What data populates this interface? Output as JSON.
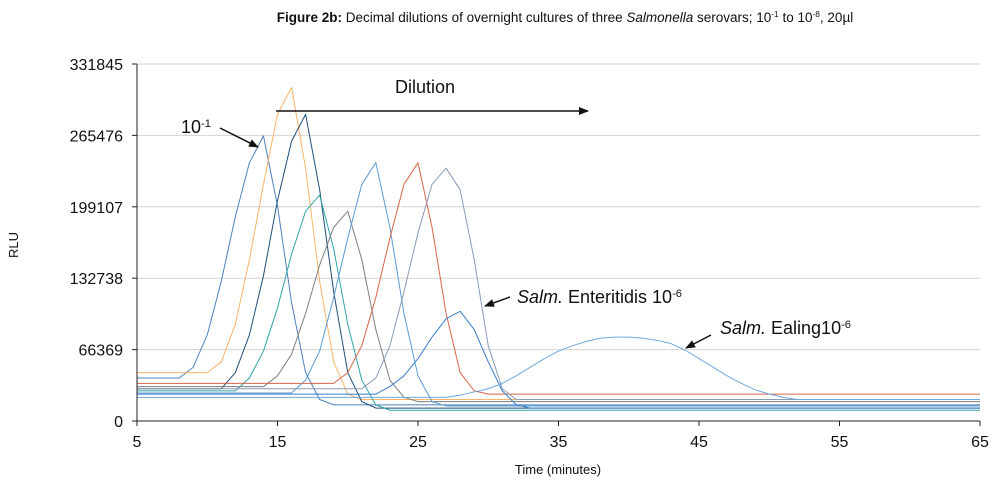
{
  "chart_data": {
    "type": "line",
    "title": [
      {
        "text": "Figure 2b:",
        "style": "bold"
      },
      {
        "text": " Decimal dilutions of overnight cultures of three "
      },
      {
        "text": "Salmonella",
        "style": "italic"
      },
      {
        "text": " serovars; 10"
      },
      {
        "text": "-1",
        "style": "sup"
      },
      {
        "text": " to 10"
      },
      {
        "text": "-8",
        "style": "sup"
      },
      {
        "text": ", 20µl"
      }
    ],
    "xlabel": "Time (minutes)",
    "ylabel": "RLU",
    "xlim": [
      5,
      65
    ],
    "xticks": [
      5,
      15,
      25,
      35,
      45,
      55,
      65
    ],
    "ylim": [
      0,
      331845
    ],
    "yticks": [
      0,
      66369,
      132738,
      199107,
      265476,
      331845
    ],
    "grid": true,
    "annotations": [
      [
        {
          "text": "Dilution"
        }
      ],
      [
        {
          "text": "10"
        },
        {
          "text": "-1",
          "style": "sup"
        }
      ],
      [
        {
          "text": "Salm.",
          "style": "italic"
        },
        {
          "text": " Enteritidis 10"
        },
        {
          "text": "-6",
          "style": "sup"
        }
      ],
      [
        {
          "text": "Salm.",
          "style": "italic"
        },
        {
          "text": " Ealing10"
        },
        {
          "text": "-6",
          "style": "sup"
        }
      ]
    ],
    "x": [
      5,
      6,
      7,
      8,
      9,
      10,
      11,
      12,
      13,
      14,
      15,
      16,
      17,
      18,
      19,
      20,
      21,
      22,
      23,
      24,
      25,
      26,
      27,
      28,
      29,
      30,
      31,
      32,
      33,
      34,
      35,
      36,
      37,
      38,
      39,
      40,
      41,
      42,
      43,
      44,
      45,
      46,
      47,
      48,
      49,
      50,
      51,
      52,
      53,
      54,
      55,
      56,
      57,
      58,
      59,
      60,
      61,
      62,
      63,
      64,
      65
    ],
    "series": [
      {
        "color": "#4f81bd",
        "values": [
          40000,
          40000,
          40000,
          40000,
          50000,
          80000,
          130000,
          190000,
          240000,
          265000,
          200000,
          110000,
          45000,
          20000,
          15000,
          15000,
          15000,
          15000,
          15000,
          15000,
          15000,
          15000,
          15000,
          15000,
          15000,
          15000,
          15000,
          15000,
          15000,
          15000,
          15000,
          15000,
          15000,
          15000,
          15000,
          15000,
          15000,
          15000,
          15000,
          15000,
          15000,
          15000,
          15000,
          15000,
          15000,
          15000,
          15000,
          15000,
          15000,
          15000,
          15000,
          15000,
          15000,
          15000,
          15000,
          15000,
          15000,
          15000,
          15000,
          15000,
          15000
        ]
      },
      {
        "color": "#f9b36b",
        "values": [
          45000,
          45000,
          45000,
          45000,
          45000,
          45000,
          55000,
          90000,
          150000,
          220000,
          285000,
          310000,
          235000,
          130000,
          55000,
          25000,
          20000,
          20000,
          20000,
          20000,
          20000,
          20000,
          20000,
          20000,
          20000,
          20000,
          20000,
          20000,
          20000,
          20000,
          20000,
          20000,
          20000,
          20000,
          20000,
          20000,
          20000,
          20000,
          20000,
          20000,
          20000,
          20000,
          20000,
          20000,
          20000,
          20000,
          20000,
          20000,
          20000,
          20000,
          20000,
          20000,
          20000,
          20000,
          20000,
          20000,
          20000,
          20000,
          20000,
          20000,
          20000
        ]
      },
      {
        "color": "#1f4e79",
        "values": [
          30000,
          30000,
          30000,
          30000,
          30000,
          30000,
          30000,
          45000,
          80000,
          135000,
          205000,
          260000,
          285000,
          215000,
          120000,
          45000,
          18000,
          12000,
          12000,
          12000,
          12000,
          12000,
          12000,
          12000,
          12000,
          12000,
          12000,
          12000,
          12000,
          12000,
          12000,
          12000,
          12000,
          12000,
          12000,
          12000,
          12000,
          12000,
          12000,
          12000,
          12000,
          12000,
          12000,
          12000,
          12000,
          12000,
          12000,
          12000,
          12000,
          12000,
          12000,
          12000,
          12000,
          12000,
          12000,
          12000,
          12000,
          12000,
          12000,
          12000,
          12000
        ]
      },
      {
        "color": "#2ca5a5",
        "values": [
          28000,
          28000,
          28000,
          28000,
          28000,
          28000,
          28000,
          28000,
          40000,
          65000,
          105000,
          155000,
          195000,
          210000,
          160000,
          90000,
          38000,
          15000,
          10000,
          10000,
          10000,
          10000,
          10000,
          10000,
          10000,
          10000,
          10000,
          10000,
          10000,
          10000,
          10000,
          10000,
          10000,
          10000,
          10000,
          10000,
          10000,
          10000,
          10000,
          10000,
          10000,
          10000,
          10000,
          10000,
          10000,
          10000,
          10000,
          10000,
          10000,
          10000,
          10000,
          10000,
          10000,
          10000,
          10000,
          10000,
          10000,
          10000,
          10000,
          10000,
          10000
        ]
      },
      {
        "color": "#7f7f7f",
        "values": [
          32000,
          32000,
          32000,
          32000,
          32000,
          32000,
          32000,
          32000,
          32000,
          32000,
          42000,
          62000,
          100000,
          145000,
          180000,
          195000,
          150000,
          85000,
          38000,
          22000,
          18000,
          18000,
          18000,
          18000,
          18000,
          18000,
          18000,
          18000,
          18000,
          18000,
          18000,
          18000,
          18000,
          18000,
          18000,
          18000,
          18000,
          18000,
          18000,
          18000,
          18000,
          18000,
          18000,
          18000,
          18000,
          18000,
          18000,
          18000,
          18000,
          18000,
          18000,
          18000,
          18000,
          18000,
          18000,
          18000,
          18000,
          18000,
          18000,
          18000,
          18000
        ]
      },
      {
        "color": "#5b9bd5",
        "values": [
          26000,
          26000,
          26000,
          26000,
          26000,
          26000,
          26000,
          26000,
          26000,
          26000,
          26000,
          26000,
          38000,
          65000,
          115000,
          170000,
          220000,
          240000,
          180000,
          100000,
          42000,
          18000,
          14000,
          14000,
          14000,
          14000,
          14000,
          14000,
          14000,
          14000,
          14000,
          14000,
          14000,
          14000,
          14000,
          14000,
          14000,
          14000,
          14000,
          14000,
          14000,
          14000,
          14000,
          14000,
          14000,
          14000,
          14000,
          14000,
          14000,
          14000,
          14000,
          14000,
          14000,
          14000,
          14000,
          14000,
          14000,
          14000,
          14000,
          14000,
          14000
        ]
      },
      {
        "color": "#d9644a",
        "values": [
          35000,
          35000,
          35000,
          35000,
          35000,
          35000,
          35000,
          35000,
          35000,
          35000,
          35000,
          35000,
          35000,
          35000,
          35000,
          45000,
          70000,
          115000,
          170000,
          220000,
          240000,
          180000,
          100000,
          45000,
          28000,
          25000,
          25000,
          25000,
          25000,
          25000,
          25000,
          25000,
          25000,
          25000,
          25000,
          25000,
          25000,
          25000,
          25000,
          25000,
          25000,
          25000,
          25000,
          25000,
          25000,
          25000,
          25000,
          25000,
          25000,
          25000,
          25000,
          25000,
          25000,
          25000,
          25000,
          25000,
          25000,
          25000,
          25000,
          25000,
          25000
        ]
      },
      {
        "color": "#8a9bb5",
        "values": [
          30000,
          30000,
          30000,
          30000,
          30000,
          30000,
          30000,
          30000,
          30000,
          30000,
          30000,
          30000,
          30000,
          30000,
          30000,
          30000,
          30000,
          40000,
          70000,
          120000,
          175000,
          220000,
          235000,
          215000,
          150000,
          70000,
          30000,
          20000,
          20000,
          20000,
          20000,
          20000,
          20000,
          20000,
          20000,
          20000,
          20000,
          20000,
          20000,
          20000,
          20000,
          20000,
          20000,
          20000,
          20000,
          20000,
          20000,
          20000,
          20000,
          20000,
          20000,
          20000,
          20000,
          20000,
          20000,
          20000,
          20000,
          20000,
          20000,
          20000,
          20000
        ]
      },
      {
        "color": "#3a7dc9",
        "values": [
          25000,
          25000,
          25000,
          25000,
          25000,
          25000,
          25000,
          25000,
          25000,
          25000,
          25000,
          25000,
          25000,
          25000,
          25000,
          25000,
          25000,
          25000,
          32000,
          42000,
          58000,
          78000,
          95000,
          102000,
          85000,
          55000,
          28000,
          15000,
          12000,
          12000,
          12000,
          12000,
          12000,
          12000,
          12000,
          12000,
          12000,
          12000,
          12000,
          12000,
          12000,
          12000,
          12000,
          12000,
          12000,
          12000,
          12000,
          12000,
          12000,
          12000,
          12000,
          12000,
          12000,
          12000,
          12000,
          12000,
          12000,
          12000,
          12000,
          12000,
          12000
        ]
      },
      {
        "color": "#6fa8dc",
        "values": [
          22000,
          22000,
          22000,
          22000,
          22000,
          22000,
          22000,
          22000,
          22000,
          22000,
          22000,
          22000,
          22000,
          22000,
          22000,
          22000,
          22000,
          22000,
          22000,
          22000,
          22000,
          22000,
          22000,
          24000,
          27000,
          30000,
          35000,
          42000,
          50000,
          58000,
          65000,
          70000,
          74000,
          77000,
          78000,
          78000,
          77000,
          75000,
          72000,
          66000,
          58000,
          50000,
          42000,
          35000,
          29000,
          25000,
          22000,
          20000,
          20000,
          20000,
          20000,
          20000,
          20000,
          20000,
          20000,
          20000,
          20000,
          20000,
          20000,
          20000,
          20000
        ]
      }
    ]
  }
}
